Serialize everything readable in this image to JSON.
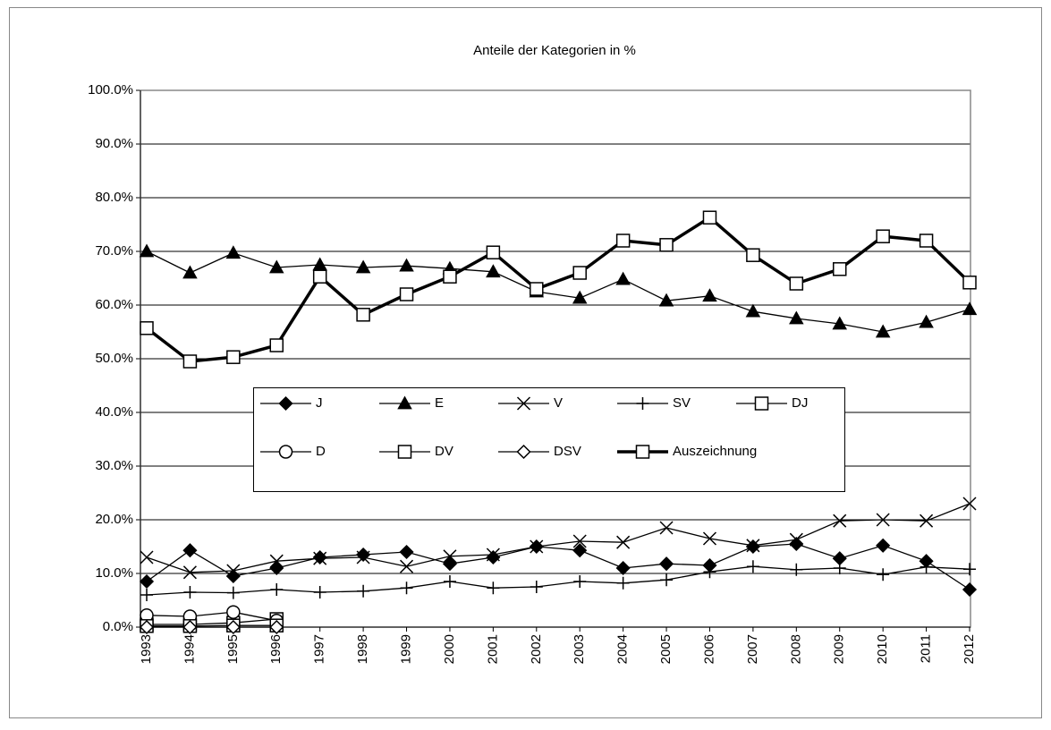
{
  "chart_data": {
    "type": "line",
    "title": "Anteile der Kategorien in %",
    "categories": [
      "1993",
      "1994",
      "1995",
      "1996",
      "1997",
      "1998",
      "1999",
      "2000",
      "2001",
      "2002",
      "2003",
      "2004",
      "2005",
      "2006",
      "2007",
      "2008",
      "2009",
      "2010",
      "2011",
      "2012"
    ],
    "ylim": [
      0,
      100
    ],
    "yticks": [
      {
        "value": 0,
        "label": "0.0%"
      },
      {
        "value": 10,
        "label": "10.0%"
      },
      {
        "value": 20,
        "label": "20.0%"
      },
      {
        "value": 30,
        "label": "30.0%"
      },
      {
        "value": 40,
        "label": "40.0%"
      },
      {
        "value": 50,
        "label": "50.0%"
      },
      {
        "value": 60,
        "label": "60.0%"
      },
      {
        "value": 70,
        "label": "70.0%"
      },
      {
        "value": 80,
        "label": "80.0%"
      },
      {
        "value": 90,
        "label": "90.0%"
      },
      {
        "value": 100,
        "label": "100.0%"
      }
    ],
    "grid": true,
    "legend": "center",
    "series": [
      {
        "name": "J",
        "color": "#000000",
        "marker": "diamond-filled",
        "values": [
          8.5,
          14.3,
          9.5,
          11,
          13,
          13.5,
          14,
          11.8,
          13,
          15,
          14.3,
          11,
          11.8,
          11.5,
          15,
          15.5,
          12.8,
          15.2,
          12.3,
          7
        ]
      },
      {
        "name": "E",
        "color": "#000000",
        "marker": "triangle-filled",
        "values": [
          70,
          66,
          69.7,
          67,
          67.5,
          67,
          67.3,
          66.8,
          66.2,
          62.5,
          61.3,
          64.8,
          60.8,
          61.7,
          58.8,
          57.5,
          56.5,
          55,
          56.8,
          59.2
        ]
      },
      {
        "name": "V",
        "color": "#000000",
        "marker": "x",
        "values": [
          13,
          10.2,
          10.5,
          12.3,
          12.8,
          13,
          11.3,
          13.2,
          13.5,
          15,
          16,
          15.8,
          18.5,
          16.5,
          15.2,
          16.3,
          19.8,
          20,
          19.8,
          23
        ]
      },
      {
        "name": "SV",
        "color": "#000000",
        "marker": "plus",
        "values": [
          6,
          6.5,
          6.4,
          7,
          6.5,
          6.7,
          7.3,
          8.5,
          7.3,
          7.5,
          8.5,
          8.2,
          8.8,
          10.3,
          11.3,
          10.7,
          11,
          9.8,
          11.2,
          10.8
        ]
      },
      {
        "name": "DJ",
        "color": "#000000",
        "marker": "square-open",
        "values": [
          0.5,
          0.5,
          0.8,
          1.5,
          null,
          null,
          null,
          null,
          null,
          null,
          null,
          null,
          null,
          null,
          null,
          null,
          null,
          null,
          null,
          null
        ]
      },
      {
        "name": "D",
        "color": "#000000",
        "marker": "circle-open",
        "values": [
          2.2,
          2,
          2.8,
          1.2,
          null,
          null,
          null,
          null,
          null,
          null,
          null,
          null,
          null,
          null,
          null,
          null,
          null,
          null,
          null,
          null
        ]
      },
      {
        "name": "DV",
        "color": "#000000",
        "marker": "square-open",
        "values": [
          0.2,
          0.2,
          0.3,
          0.3,
          null,
          null,
          null,
          null,
          null,
          null,
          null,
          null,
          null,
          null,
          null,
          null,
          null,
          null,
          null,
          null
        ]
      },
      {
        "name": "DSV",
        "color": "#000000",
        "marker": "diamond-open",
        "values": [
          0,
          0,
          0,
          0,
          null,
          null,
          null,
          null,
          null,
          null,
          null,
          null,
          null,
          null,
          null,
          null,
          null,
          null,
          null,
          null
        ]
      },
      {
        "name": "Auszeichnung",
        "color": "#000000",
        "marker": "square-open",
        "line_width": 3.5,
        "values": [
          55.7,
          49.5,
          50.3,
          52.5,
          65.3,
          58.2,
          62,
          65.3,
          69.8,
          63,
          66,
          72,
          71.2,
          76.3,
          69.3,
          64,
          66.7,
          72.8,
          72,
          64.2
        ]
      }
    ]
  }
}
